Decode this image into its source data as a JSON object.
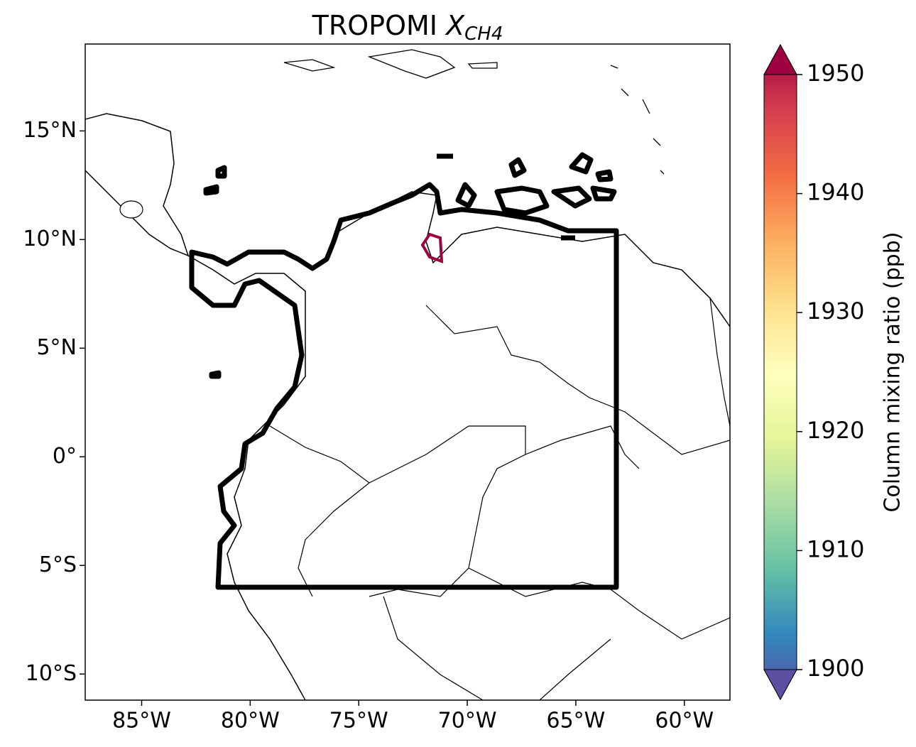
{
  "map": {
    "title": {
      "text": "TROPOMI",
      "symbol": "X",
      "subscript": "CH4"
    },
    "xlim": [
      -87.6,
      -57.9
    ],
    "ylim": [
      -11.2,
      19.0
    ],
    "xticks": [
      {
        "value": -85,
        "label": "85°W"
      },
      {
        "value": -80,
        "label": "80°W"
      },
      {
        "value": -75,
        "label": "75°W"
      },
      {
        "value": -70,
        "label": "70°W"
      },
      {
        "value": -65,
        "label": "65°W"
      },
      {
        "value": -60,
        "label": "60°W"
      }
    ],
    "yticks": [
      {
        "value": 15,
        "label": "15°N"
      },
      {
        "value": 10,
        "label": "10°N"
      },
      {
        "value": 5,
        "label": "5°N"
      },
      {
        "value": 0,
        "label": "0°"
      },
      {
        "value": -5,
        "label": "5°S"
      },
      {
        "value": -10,
        "label": "10°S"
      }
    ],
    "colorbar": {
      "label": "Column mixing ratio (ppb)",
      "lim": [
        1900,
        1950
      ],
      "ticks": [
        1900,
        1910,
        1920,
        1930,
        1940,
        1950
      ],
      "colormap": [
        "#5e4fa2",
        "#3288bd",
        "#66c2a5",
        "#abdda4",
        "#e6f598",
        "#ffffbf",
        "#fee08b",
        "#fdae61",
        "#f46d43",
        "#d53e4f",
        "#9e0142"
      ]
    }
  }
}
